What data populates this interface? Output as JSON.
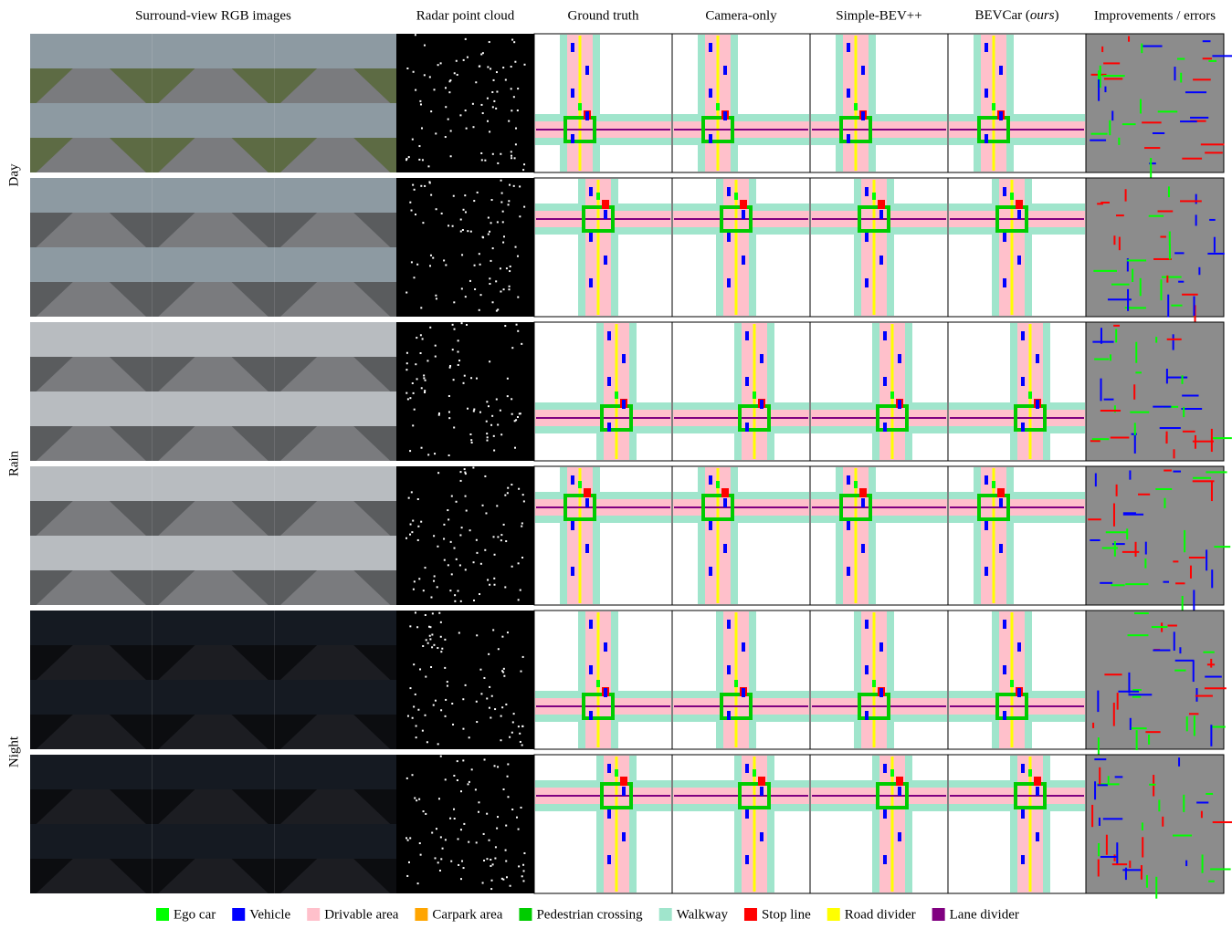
{
  "columns": [
    "Surround-view RGB images",
    "Radar point cloud",
    "Ground truth",
    "Camera-only",
    "Simple-BEV++",
    {
      "parts": [
        "BEVCar (",
        "ours",
        ")"
      ]
    },
    "Improvements / errors"
  ],
  "row_groups": [
    "Day",
    "Rain",
    "Night"
  ],
  "legend": [
    {
      "label": "Ego car",
      "color": "#00ff00"
    },
    {
      "label": "Vehicle",
      "color": "#0000ff"
    },
    {
      "label": "Drivable area",
      "color": "#ffc0cb"
    },
    {
      "label": "Carpark area",
      "color": "#ffa500"
    },
    {
      "label": "Pedestrian crossing",
      "color": "#00cc00"
    },
    {
      "label": "Walkway",
      "color": "#a0e5cc"
    },
    {
      "label": "Stop line",
      "color": "#ff0000"
    },
    {
      "label": "Road divider",
      "color": "#ffff00"
    },
    {
      "label": "Lane divider",
      "color": "#800080"
    }
  ]
}
